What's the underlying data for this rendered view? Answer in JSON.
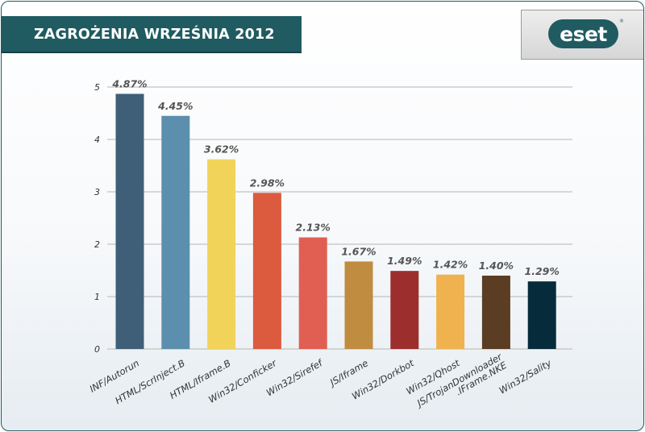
{
  "header": {
    "title": "ZAGROŻENIA WRZEŚNIA 2012"
  },
  "logo": {
    "text": "eset",
    "registered": "®"
  },
  "colors": {
    "frame": "#1f5b61",
    "grid": "#b5b5b5"
  },
  "chart_data": {
    "type": "bar",
    "title": "ZAGROŻENIA WRZEŚNIA 2012",
    "xlabel": "",
    "ylabel": "",
    "ylim": [
      0,
      5
    ],
    "yticks": [
      0,
      1,
      2,
      3,
      4,
      5
    ],
    "grid": true,
    "categories": [
      "INF/Autorun",
      "HTML/ScrInject.B",
      "HTML/Iframe.B",
      "Win32/Conficker",
      "Win32/Sirefef",
      "JS/Iframe",
      "Win32/Dorkbot",
      "Win32/Qhost",
      "JS/TrojanDownloader .IFrame.NKE",
      "Win32/Sality"
    ],
    "values": [
      4.87,
      4.45,
      3.62,
      2.98,
      2.13,
      1.67,
      1.49,
      1.42,
      1.4,
      1.29
    ],
    "labels": [
      "4.87%",
      "4.45%",
      "3.62%",
      "2.98%",
      "2.13%",
      "1.67%",
      "1.49%",
      "1.42%",
      "1.40%",
      "1.29%"
    ],
    "bar_colors": [
      "#3f5f78",
      "#5b8fad",
      "#f2d35a",
      "#dc5a3e",
      "#e05f52",
      "#c08c3f",
      "#9c2f2d",
      "#efb24f",
      "#5a3d22",
      "#062b3a"
    ]
  }
}
